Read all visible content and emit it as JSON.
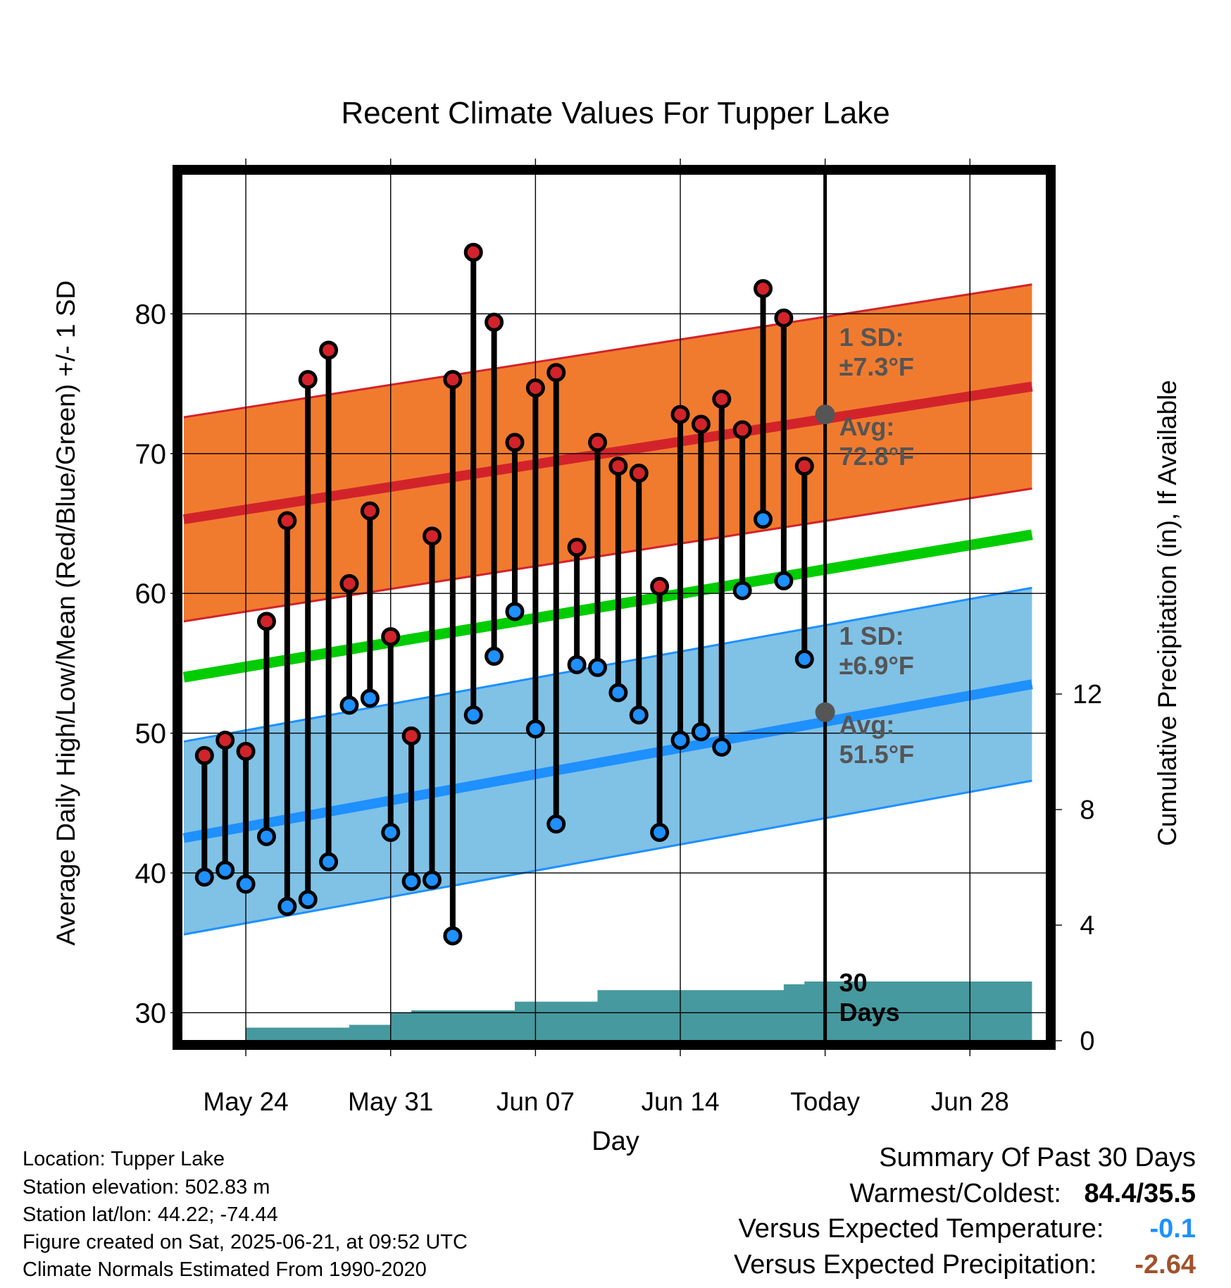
{
  "chart_data": {
    "type": "line",
    "title": "Recent Climate Values For Tupper Lake",
    "xlabel": "Day",
    "ylabel": "Average Daily High/Low/Mean (Red/Blue/Green) +/- 1 SD",
    "y2label": "Cumulative Precipitation (in), If Available",
    "ylim": [
      28,
      90
    ],
    "y2lim": [
      0,
      30
    ],
    "yticks": [
      "30",
      "40",
      "50",
      "60",
      "70",
      "80"
    ],
    "y2ticks": [
      "0",
      "4",
      "8",
      "12"
    ],
    "xlim": [
      20.9,
      62.7
    ],
    "x_tick_labels": [
      "May 24",
      "May 31",
      "Jun 07",
      "Jun 14",
      "Today",
      "Jun 28"
    ],
    "x_tick_positions": [
      24,
      31,
      38,
      45,
      52,
      59
    ],
    "grid": true,
    "days": [
      22,
      23,
      24,
      25,
      26,
      27,
      28,
      29,
      30,
      31,
      32,
      33,
      34,
      35,
      36,
      37,
      38,
      39,
      40,
      41,
      42,
      43,
      44,
      45,
      46,
      47,
      48,
      49,
      50,
      51
    ],
    "series": [
      {
        "name": "High",
        "color": "#cc2222",
        "values": [
          48.4,
          49.5,
          48.7,
          58.0,
          65.2,
          75.3,
          77.4,
          60.7,
          65.9,
          56.9,
          49.8,
          64.1,
          75.3,
          84.4,
          79.4,
          70.8,
          74.7,
          75.8,
          63.3,
          70.8,
          69.1,
          68.6,
          60.5,
          72.8,
          72.1,
          73.9,
          71.7,
          81.8,
          79.7,
          69.1
        ]
      },
      {
        "name": "Low",
        "color": "#2288ee",
        "values": [
          39.7,
          40.2,
          39.2,
          42.6,
          37.6,
          38.1,
          40.8,
          52.0,
          52.5,
          42.9,
          39.4,
          39.5,
          35.5,
          51.3,
          55.5,
          58.7,
          50.3,
          43.5,
          54.9,
          54.7,
          52.9,
          51.3,
          42.9,
          49.5,
          50.1,
          49.0,
          60.2,
          65.3,
          60.9,
          55.3
        ]
      }
    ],
    "normal_high": {
      "x": [
        21,
        62
      ],
      "mean": [
        65.3,
        74.8
      ],
      "sd": 7.3
    },
    "normal_low": {
      "x": [
        21,
        62
      ],
      "mean": [
        42.5,
        53.5
      ],
      "sd": 6.9
    },
    "normal_mean": {
      "x": [
        21,
        62
      ],
      "values": [
        54.0,
        64.2
      ]
    },
    "precip_cumulative": {
      "x": [
        21,
        23,
        24,
        25,
        26,
        27,
        28,
        29,
        30,
        31,
        32,
        33,
        34,
        35,
        36,
        37,
        38,
        39,
        40,
        41,
        42,
        43,
        44,
        45,
        46,
        47,
        48,
        49,
        50,
        51,
        62
      ],
      "values": [
        0,
        0,
        0.45,
        0.45,
        0.45,
        0.45,
        0.45,
        0.55,
        0.55,
        0.95,
        1.05,
        1.05,
        1.05,
        1.05,
        1.05,
        1.35,
        1.35,
        1.35,
        1.35,
        1.75,
        1.75,
        1.75,
        1.75,
        1.75,
        1.75,
        1.75,
        1.75,
        1.75,
        1.95,
        2.05,
        2.05
      ]
    },
    "annotations": {
      "high_sd": [
        "1 SD:",
        "±7.3°F"
      ],
      "high_avg": [
        "Avg:",
        "72.8°F"
      ],
      "low_sd": [
        "1 SD:",
        "±6.9°F"
      ],
      "low_avg": [
        "Avg:",
        "51.5°F"
      ],
      "period": [
        "30",
        "Days"
      ],
      "today_high_avg": 72.8,
      "today_low_avg": 51.5
    },
    "colors": {
      "high_band": "#f07b2f",
      "high_line": "#d2232a",
      "low_band": "#80c1e6",
      "low_line": "#1e90ff",
      "mean_line": "#00cc00",
      "precip_fill": "#46999e",
      "annotation_text": "#555555"
    }
  },
  "info": {
    "location": "Location: Tupper Lake",
    "elevation": "Station elevation: 502.83 m",
    "latlon": "Station lat/lon: 44.22; -74.44",
    "created": "Figure created on Sat, 2025-06-21, at 09:52 UTC",
    "normals": "Climate Normals Estimated From 1990-2020"
  },
  "summary": {
    "title": "Summary Of Past 30 Days",
    "warmest_label": "Warmest/Coldest:",
    "warmest_value": "84.4/35.5",
    "temp_label": "Versus Expected Temperature:",
    "temp_value": "-0.1",
    "temp_color": "#1e90ff",
    "precip_label": "Versus Expected Precipitation:",
    "precip_value": "-2.64",
    "precip_color": "#a0522d"
  }
}
